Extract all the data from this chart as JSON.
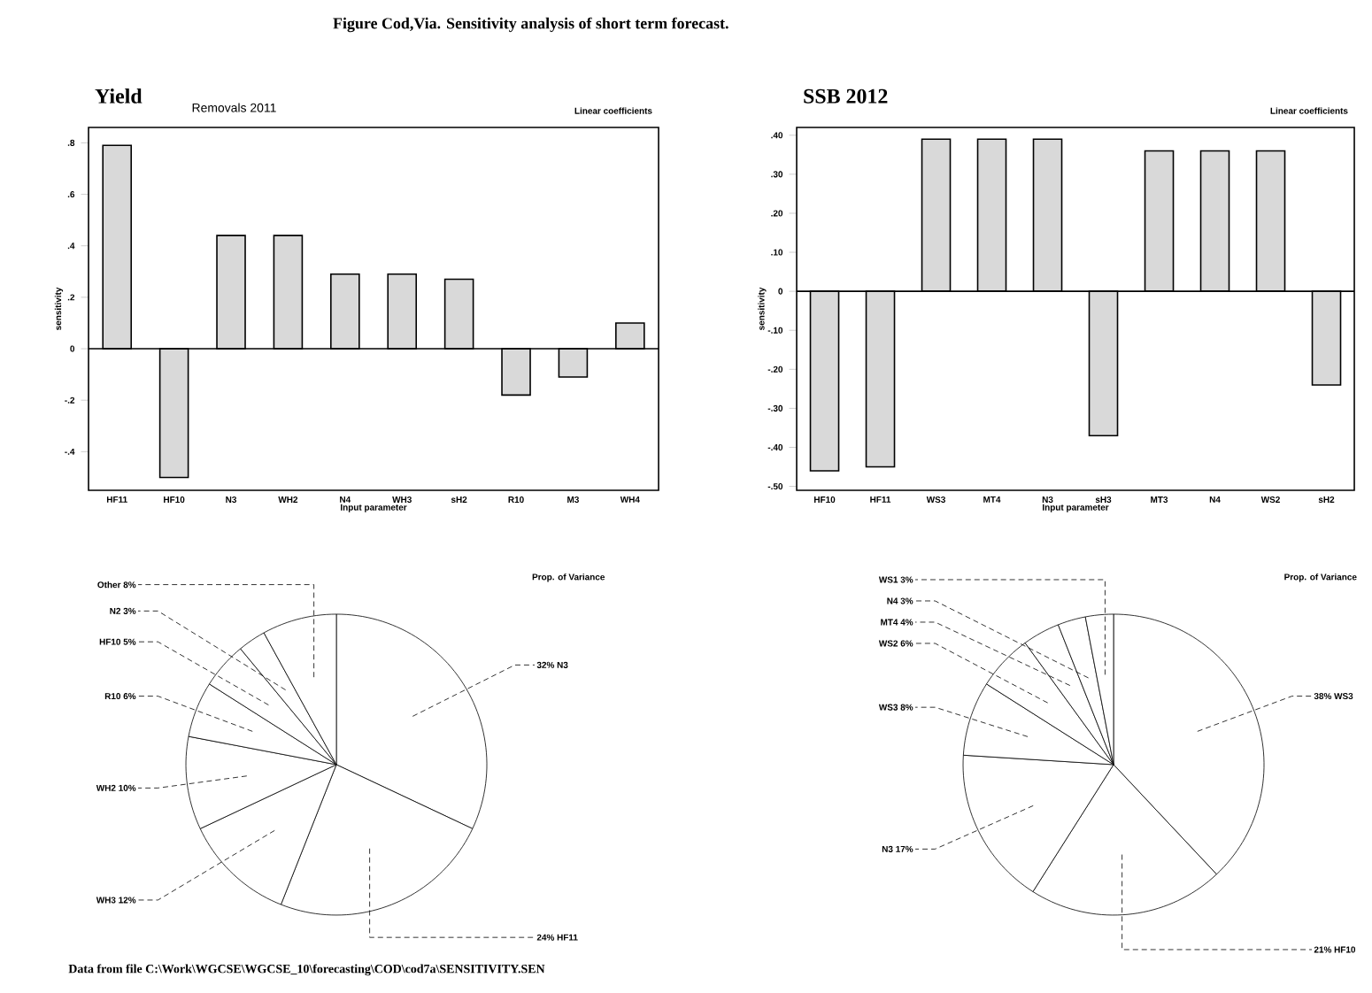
{
  "chart_data": [
    {
      "type": "bar",
      "title": "Yield",
      "subtitle": "Removals 2011",
      "xlabel": "Input parameter",
      "ylabel": "sensitivity",
      "annotations": [
        "Figure Cod,Via. Sensitivity analysis of short term forecast.",
        "Linear coefficients"
      ],
      "categories": [
        "HF11",
        "HF10",
        "N3",
        "WH2",
        "N4",
        "WH3",
        "sH2",
        "R10",
        "M3",
        "WH4"
      ],
      "values": [
        0.79,
        -0.5,
        0.44,
        0.44,
        0.29,
        0.29,
        0.27,
        -0.18,
        -0.11,
        0.1
      ],
      "color": "#d9d9d9",
      "ylim": [
        -0.55,
        0.86
      ],
      "yticks": [
        {
          "value": -0.4,
          "label": "-.4"
        },
        {
          "value": -0.2,
          "label": "-.2"
        },
        0,
        {
          "value": 0.2,
          "label": ".2"
        },
        {
          "value": 0.4,
          "label": ".4"
        },
        {
          "value": 0.6,
          "label": ".6"
        },
        {
          "value": 0.8,
          "label": ".8"
        }
      ],
      "ref_lines": [
        {
          "axis": "y",
          "value": 0
        }
      ]
    },
    {
      "type": "bar",
      "title": "SSB 2012",
      "xlabel": "Input parameter",
      "ylabel": "sensitivity",
      "annotations": [
        "Linear coefficients"
      ],
      "categories": [
        "HF10",
        "HF11",
        "WS3",
        "MT4",
        "N3",
        "sH3",
        "MT3",
        "N4",
        "WS2",
        "sH2"
      ],
      "values": [
        -0.46,
        -0.45,
        0.39,
        0.39,
        0.39,
        -0.37,
        0.36,
        0.36,
        0.36,
        -0.24
      ],
      "color": "#d9d9d9",
      "ylim": [
        -0.51,
        0.42
      ],
      "yticks": [
        {
          "value": -0.5,
          "label": "-.50"
        },
        {
          "value": -0.4,
          "label": "-.40"
        },
        {
          "value": -0.3,
          "label": "-.30"
        },
        {
          "value": -0.2,
          "label": "-.20"
        },
        {
          "value": -0.1,
          "label": "-.10"
        },
        0,
        {
          "value": 0.1,
          "label": ".10"
        },
        {
          "value": 0.2,
          "label": ".20"
        },
        {
          "value": 0.3,
          "label": ".30"
        },
        {
          "value": 0.4,
          "label": ".40"
        }
      ],
      "ref_lines": [
        {
          "axis": "y",
          "value": 0
        }
      ]
    },
    {
      "type": "pie",
      "annotations": [
        "Data from file C:\\Work\\WGCSE\\WGCSE_10\\forecasting\\COD\\cod7a\\SENSITIVITY.SEN",
        "Prop. of Variance"
      ],
      "categories": [
        "32% N3",
        "24% HF11",
        "WH3 12%",
        "WH2 10%",
        "R10 6%",
        "HF10 5%",
        "N2 3%",
        "Other 8%"
      ],
      "values": [
        32,
        24,
        12,
        10,
        6,
        5,
        3,
        8
      ],
      "colors": [
        "#ffffff",
        "#ffffff",
        "#ffffff",
        "#ffffff",
        "#ffffff",
        "#ffffff",
        "#ffffff",
        "#ffffff"
      ]
    },
    {
      "type": "pie",
      "annotations": [
        "Prop. of Variance"
      ],
      "categories": [
        "38% WS3",
        "21% HF10",
        "N3 17%",
        "WS3 8%",
        "WS2 6%",
        "MT4 4%",
        "N4 3%",
        "WS1 3%"
      ],
      "values": [
        38,
        21,
        17,
        8,
        6,
        4,
        3,
        3
      ],
      "colors": [
        "#ffffff",
        "#ffffff",
        "#ffffff",
        "#ffffff",
        "#ffffff",
        "#ffffff",
        "#ffffff",
        "#ffffff"
      ]
    }
  ]
}
